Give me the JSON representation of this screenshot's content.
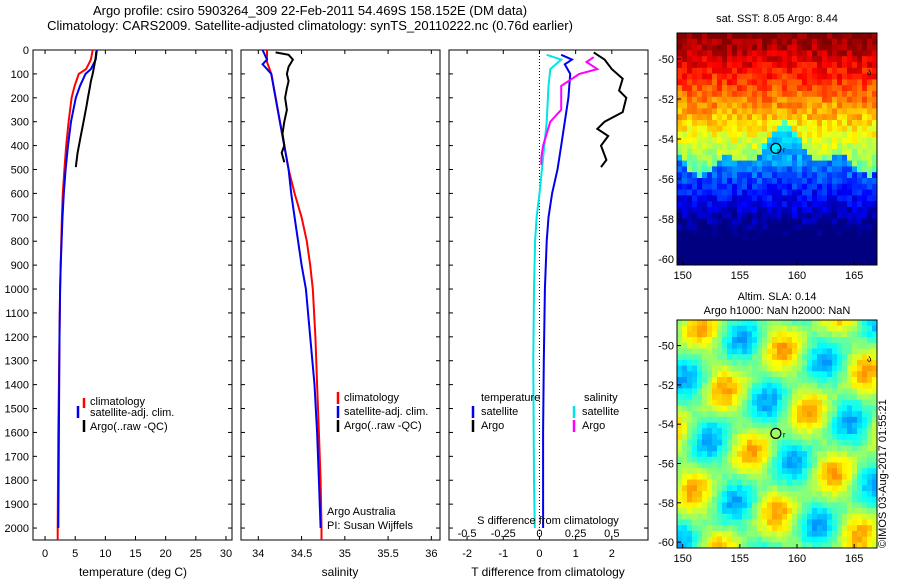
{
  "header": {
    "line1": "Argo profile: csiro 5903264_309 22-Feb-2011 54.469S 158.152E (DM data)",
    "line2": "Climatology: CARS2009. Satellite-adjusted climatology: synTS_20110222.nc (0.76d earlier)"
  },
  "colors": {
    "climatology": "#ff0000",
    "satellite": "#0000ee",
    "argo": "#000000",
    "satellite_salinity": "#00e5e5",
    "argo_salinity": "#ff00ff"
  },
  "panels": {
    "temperature": {
      "xlabel": "temperature (deg C)"
    },
    "salinity": {
      "xlabel": "salinity",
      "credit1": "Argo Australia",
      "credit2": "PI: Susan Wijffels"
    },
    "difference": {
      "xlabel": "T difference from climatology",
      "top_label": "S difference from climatology"
    }
  },
  "legend": {
    "climatology": "climatology",
    "satellite_adj": "satellite-adj. clim.",
    "argo": "Argo(..raw -QC)",
    "temperature_head": "temperature",
    "salinity_head": "salinity",
    "satellite": "satellite",
    "argo_short": "Argo"
  },
  "maps": {
    "sst_title": "sat. SST: 8.05 Argo: 8.44",
    "sla_title1": "Altim. SLA: 0.14",
    "sla_title2": "Argo h1000: NaN h2000: NaN",
    "float_label": "r",
    "xticks": [
      "150",
      "155",
      "160",
      "165"
    ],
    "yticks": [
      "-50",
      "-52",
      "-54",
      "-56",
      "-58",
      "-60"
    ]
  },
  "stamp": "©IMOS 03-Aug-2017 01:55:21",
  "chart_data": [
    {
      "type": "line",
      "panel": "temperature",
      "xlabel": "temperature (deg C)",
      "xlim": [
        -2,
        31
      ],
      "ylim": [
        0,
        2050
      ],
      "y_reversed": true,
      "xticks": [
        0,
        5,
        10,
        15,
        20,
        25,
        30
      ],
      "yticks": [
        0,
        100,
        200,
        300,
        400,
        500,
        600,
        700,
        800,
        900,
        1000,
        1100,
        1200,
        1300,
        1400,
        1500,
        1600,
        1700,
        1800,
        1900,
        2000
      ],
      "series": [
        {
          "name": "climatology",
          "points": [
            [
              7.9,
              0
            ],
            [
              7.6,
              40
            ],
            [
              6.8,
              80
            ],
            [
              5.6,
              100
            ],
            [
              4.9,
              150
            ],
            [
              4.4,
              200
            ],
            [
              3.9,
              300
            ],
            [
              3.5,
              400
            ],
            [
              3.2,
              500
            ],
            [
              2.95,
              600
            ],
            [
              2.8,
              700
            ],
            [
              2.7,
              800
            ],
            [
              2.6,
              900
            ],
            [
              2.5,
              1000
            ],
            [
              2.4,
              1200
            ],
            [
              2.3,
              1400
            ],
            [
              2.2,
              1600
            ],
            [
              2.15,
              1800
            ],
            [
              2.1,
              2000
            ],
            [
              2.1,
              2050
            ]
          ]
        },
        {
          "name": "satellite-adj. clim.",
          "points": [
            [
              8.6,
              0
            ],
            [
              8.4,
              40
            ],
            [
              7.6,
              80
            ],
            [
              6.7,
              100
            ],
            [
              5.8,
              150
            ],
            [
              5.1,
              200
            ],
            [
              4.3,
              300
            ],
            [
              3.8,
              400
            ],
            [
              3.4,
              500
            ],
            [
              3.1,
              600
            ],
            [
              2.9,
              700
            ],
            [
              2.75,
              800
            ],
            [
              2.6,
              900
            ],
            [
              2.5,
              1000
            ],
            [
              2.4,
              1200
            ],
            [
              2.35,
              1400
            ],
            [
              2.3,
              1600
            ],
            [
              2.25,
              1800
            ],
            [
              2.2,
              2000
            ]
          ]
        },
        {
          "name": "Argo(..raw -QC)",
          "points": [
            [
              8.5,
              5
            ],
            [
              8.4,
              30
            ],
            [
              8.2,
              60
            ],
            [
              7.9,
              100
            ],
            [
              7.6,
              130
            ],
            [
              7.4,
              160
            ],
            [
              7.1,
              200
            ],
            [
              6.9,
              230
            ],
            [
              6.6,
              270
            ],
            [
              6.3,
              310
            ],
            [
              6.0,
              350
            ],
            [
              5.7,
              390
            ],
            [
              5.4,
              430
            ],
            [
              5.2,
              470
            ],
            [
              5.1,
              490
            ]
          ]
        }
      ]
    },
    {
      "type": "line",
      "panel": "salinity",
      "xlabel": "salinity",
      "xlim": [
        33.8,
        36.1
      ],
      "ylim": [
        0,
        2050
      ],
      "y_reversed": true,
      "xticks": [
        34,
        34.5,
        35,
        35.5,
        36
      ],
      "series": [
        {
          "name": "climatology",
          "points": [
            [
              34.1,
              0
            ],
            [
              34.1,
              50
            ],
            [
              34.15,
              100
            ],
            [
              34.2,
              200
            ],
            [
              34.25,
              300
            ],
            [
              34.3,
              400
            ],
            [
              34.35,
              500
            ],
            [
              34.42,
              600
            ],
            [
              34.5,
              700
            ],
            [
              34.56,
              800
            ],
            [
              34.6,
              900
            ],
            [
              34.63,
              1000
            ],
            [
              34.66,
              1200
            ],
            [
              34.68,
              1400
            ],
            [
              34.7,
              1600
            ],
            [
              34.72,
              1800
            ],
            [
              34.73,
              2000
            ],
            [
              34.73,
              2050
            ]
          ]
        },
        {
          "name": "satellite-adj. clim.",
          "points": [
            [
              34.05,
              0
            ],
            [
              34.1,
              40
            ],
            [
              34.05,
              60
            ],
            [
              34.1,
              80
            ],
            [
              34.15,
              100
            ],
            [
              34.2,
              200
            ],
            [
              34.25,
              300
            ],
            [
              34.3,
              400
            ],
            [
              34.35,
              500
            ],
            [
              34.38,
              600
            ],
            [
              34.42,
              700
            ],
            [
              34.46,
              800
            ],
            [
              34.5,
              900
            ],
            [
              34.55,
              1000
            ],
            [
              34.6,
              1200
            ],
            [
              34.65,
              1400
            ],
            [
              34.68,
              1600
            ],
            [
              34.7,
              1800
            ],
            [
              34.72,
              2000
            ]
          ]
        },
        {
          "name": "Argo(..raw -QC)",
          "points": [
            [
              34.2,
              10
            ],
            [
              34.35,
              20
            ],
            [
              34.4,
              40
            ],
            [
              34.35,
              70
            ],
            [
              34.33,
              100
            ],
            [
              34.35,
              130
            ],
            [
              34.33,
              160
            ],
            [
              34.31,
              200
            ],
            [
              34.33,
              250
            ],
            [
              34.3,
              300
            ],
            [
              34.28,
              350
            ],
            [
              34.3,
              400
            ],
            [
              34.27,
              430
            ],
            [
              34.3,
              470
            ]
          ]
        }
      ]
    },
    {
      "type": "line",
      "panel": "difference",
      "xlabel": "T difference from climatology",
      "top_label": "S difference from climatology",
      "xlim": [
        -2.5,
        3
      ],
      "ylim": [
        0,
        2050
      ],
      "y_reversed": true,
      "xticks": [
        -2,
        -1,
        0,
        1,
        2
      ],
      "xticks_top": [
        -0.5,
        -0.25,
        0,
        0.25,
        0.5
      ],
      "series": [
        {
          "name": "temperature satellite",
          "points": [
            [
              0.6,
              20
            ],
            [
              0.9,
              40
            ],
            [
              0.7,
              60
            ],
            [
              0.85,
              100
            ],
            [
              0.8,
              200
            ],
            [
              0.7,
              300
            ],
            [
              0.6,
              400
            ],
            [
              0.5,
              500
            ],
            [
              0.35,
              600
            ],
            [
              0.25,
              700
            ],
            [
              0.2,
              800
            ],
            [
              0.15,
              1000
            ],
            [
              0.12,
              1300
            ],
            [
              0.1,
              1600
            ],
            [
              0.1,
              1800
            ],
            [
              0.1,
              2000
            ]
          ]
        },
        {
          "name": "temperature Argo",
          "points": [
            [
              1.5,
              10
            ],
            [
              1.8,
              40
            ],
            [
              2.0,
              80
            ],
            [
              2.3,
              120
            ],
            [
              2.2,
              170
            ],
            [
              2.4,
              200
            ],
            [
              2.3,
              260
            ],
            [
              1.8,
              300
            ],
            [
              1.6,
              330
            ],
            [
              1.9,
              360
            ],
            [
              1.7,
              400
            ],
            [
              1.85,
              460
            ],
            [
              1.7,
              490
            ]
          ]
        },
        {
          "name": "salinity satellite",
          "points": [
            [
              0.2,
              20
            ],
            [
              0.6,
              40
            ],
            [
              0.3,
              80
            ],
            [
              0.25,
              150
            ],
            [
              0.2,
              300
            ],
            [
              0.1,
              450
            ],
            [
              0,
              600
            ],
            [
              -0.08,
              700
            ],
            [
              -0.12,
              800
            ],
            [
              -0.15,
              1000
            ],
            [
              -0.17,
              1300
            ],
            [
              -0.16,
              1600
            ],
            [
              -0.15,
              1800
            ],
            [
              -0.13,
              2000
            ]
          ]
        },
        {
          "name": "salinity Argo",
          "points": [
            [
              1.5,
              30
            ],
            [
              1.3,
              50
            ],
            [
              1.6,
              80
            ],
            [
              1.1,
              100
            ],
            [
              0.6,
              150
            ],
            [
              0.6,
              250
            ],
            [
              0.3,
              300
            ],
            [
              0.2,
              350
            ],
            [
              0.1,
              400
            ],
            [
              0.05,
              450
            ],
            [
              0.05,
              480
            ]
          ]
        }
      ]
    },
    {
      "type": "heatmap",
      "panel": "sst_map",
      "title": "sat. SST: 8.05 Argo: 8.44",
      "xlim": [
        149.5,
        167
      ],
      "ylim": [
        -60.3,
        -48.7
      ],
      "xticks": [
        150,
        155,
        160,
        165
      ],
      "yticks": [
        -50,
        -52,
        -54,
        -56,
        -58,
        -60
      ],
      "float_position": [
        158.152,
        -54.469
      ]
    },
    {
      "type": "heatmap",
      "panel": "sla_map",
      "title": "Altim. SLA: 0.14 / Argo h1000: NaN h2000: NaN",
      "xlim": [
        149.5,
        167
      ],
      "ylim": [
        -60.3,
        -48.7
      ],
      "xticks": [
        150,
        155,
        160,
        165
      ],
      "yticks": [
        -50,
        -52,
        -54,
        -56,
        -58,
        -60
      ],
      "float_position": [
        158.152,
        -54.469
      ]
    }
  ]
}
